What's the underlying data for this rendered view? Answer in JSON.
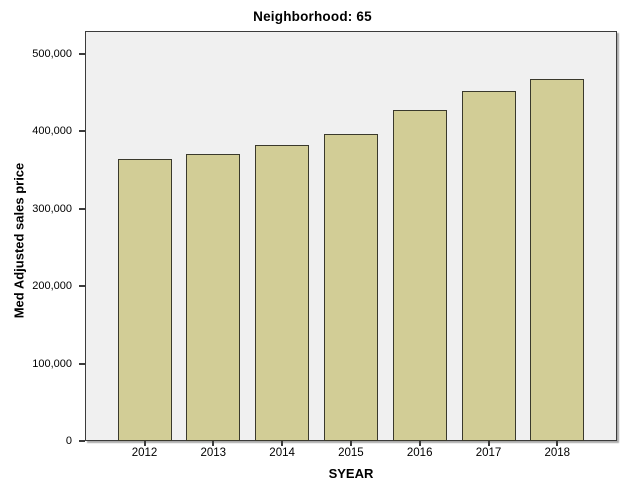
{
  "chart_data": {
    "type": "bar",
    "title": "Neighborhood: 65",
    "xlabel": "SYEAR",
    "ylabel": "Med Adjusted sales price",
    "categories": [
      "2012",
      "2013",
      "2014",
      "2015",
      "2016",
      "2017",
      "2018"
    ],
    "values": [
      364000,
      371000,
      382000,
      396000,
      428000,
      452000,
      468000
    ],
    "ylim": [
      0,
      500000
    ],
    "y_ticks": [
      0,
      100000,
      200000,
      300000,
      400000,
      500000
    ],
    "y_tick_labels": [
      "0",
      "100,000",
      "200,000",
      "300,000",
      "400,000",
      "500,000"
    ],
    "grid": false,
    "legend": "none",
    "colors": {
      "bar_fill": "#d2cd96",
      "bar_border": "#3a392c",
      "plot_background": "#f0f0f0",
      "frame": "#3b3b3b",
      "text": "#000000"
    }
  }
}
